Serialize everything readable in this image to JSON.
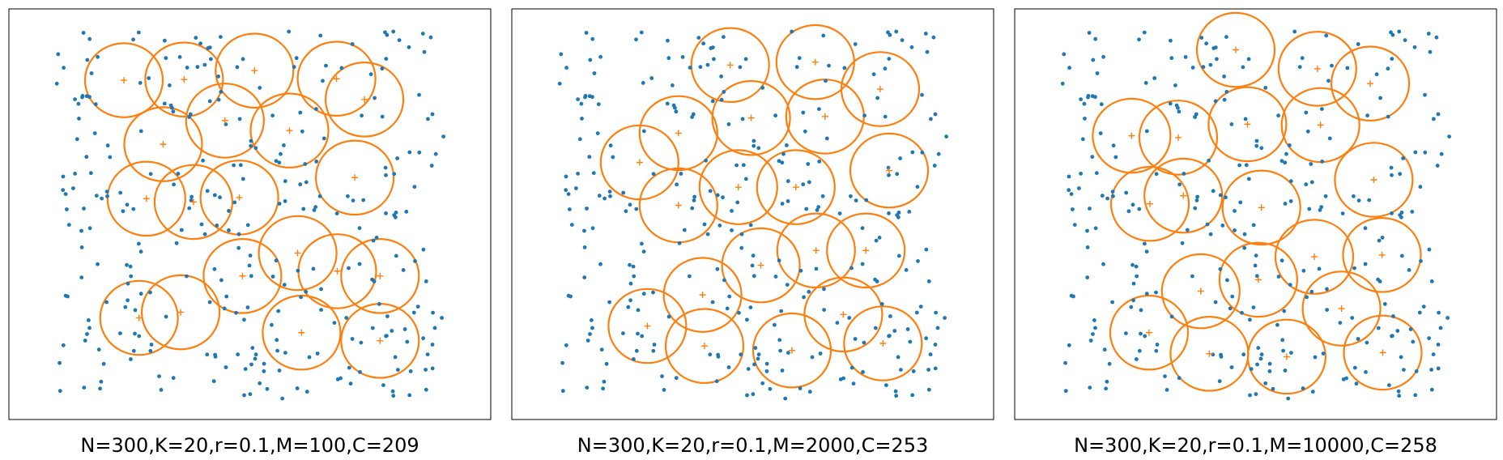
{
  "chart_data": [
    {
      "type": "scatter",
      "title": "N=300,K=20,r=0.1,M=100,C=209",
      "xlim": [
        0,
        1
      ],
      "ylim": [
        0,
        1
      ],
      "radius": 0.1,
      "n_points": 300,
      "centers": [
        {
          "x": 0.175,
          "y": 0.862
        },
        {
          "x": 0.33,
          "y": 0.864
        },
        {
          "x": 0.511,
          "y": 0.888
        },
        {
          "x": 0.722,
          "y": 0.866
        },
        {
          "x": 0.794,
          "y": 0.81
        },
        {
          "x": 0.435,
          "y": 0.753
        },
        {
          "x": 0.276,
          "y": 0.689
        },
        {
          "x": 0.601,
          "y": 0.726
        },
        {
          "x": 0.769,
          "y": 0.599
        },
        {
          "x": 0.233,
          "y": 0.542
        },
        {
          "x": 0.354,
          "y": 0.533
        },
        {
          "x": 0.472,
          "y": 0.545
        },
        {
          "x": 0.622,
          "y": 0.395
        },
        {
          "x": 0.724,
          "y": 0.346
        },
        {
          "x": 0.834,
          "y": 0.333
        },
        {
          "x": 0.48,
          "y": 0.333
        },
        {
          "x": 0.214,
          "y": 0.22
        },
        {
          "x": 0.321,
          "y": 0.235
        },
        {
          "x": 0.632,
          "y": 0.18
        },
        {
          "x": 0.834,
          "y": 0.158
        }
      ],
      "point_color": "#1f77b4",
      "center_color": "#ff7f0e",
      "circle_color": "#ff7f0e"
    },
    {
      "type": "scatter",
      "title": "N=300,K=20,r=0.1,M=2000,C=253",
      "xlim": [
        0,
        1
      ],
      "ylim": [
        0,
        1
      ],
      "radius": 0.1,
      "n_points": 300,
      "centers": [
        {
          "x": 0.441,
          "y": 0.903
        },
        {
          "x": 0.66,
          "y": 0.911
        },
        {
          "x": 0.827,
          "y": 0.838
        },
        {
          "x": 0.495,
          "y": 0.76
        },
        {
          "x": 0.685,
          "y": 0.764
        },
        {
          "x": 0.308,
          "y": 0.719
        },
        {
          "x": 0.208,
          "y": 0.64
        },
        {
          "x": 0.85,
          "y": 0.618
        },
        {
          "x": 0.308,
          "y": 0.524
        },
        {
          "x": 0.462,
          "y": 0.573
        },
        {
          "x": 0.61,
          "y": 0.573
        },
        {
          "x": 0.662,
          "y": 0.402
        },
        {
          "x": 0.79,
          "y": 0.402
        },
        {
          "x": 0.52,
          "y": 0.362
        },
        {
          "x": 0.37,
          "y": 0.282
        },
        {
          "x": 0.228,
          "y": 0.198
        },
        {
          "x": 0.375,
          "y": 0.144
        },
        {
          "x": 0.6,
          "y": 0.132
        },
        {
          "x": 0.732,
          "y": 0.229
        },
        {
          "x": 0.834,
          "y": 0.151
        }
      ],
      "point_color": "#1f77b4",
      "center_color": "#ff7f0e",
      "circle_color": "#ff7f0e"
    },
    {
      "type": "scatter",
      "title": "N=300,K=20,r=0.1,M=10000,C=258",
      "xlim": [
        0,
        1
      ],
      "ylim": [
        0,
        1
      ],
      "radius": 0.1,
      "n_points": 300,
      "centers": [
        {
          "x": 0.448,
          "y": 0.944
        },
        {
          "x": 0.658,
          "y": 0.893
        },
        {
          "x": 0.794,
          "y": 0.853
        },
        {
          "x": 0.478,
          "y": 0.743
        },
        {
          "x": 0.666,
          "y": 0.741
        },
        {
          "x": 0.18,
          "y": 0.712
        },
        {
          "x": 0.3,
          "y": 0.707
        },
        {
          "x": 0.803,
          "y": 0.593
        },
        {
          "x": 0.227,
          "y": 0.528
        },
        {
          "x": 0.313,
          "y": 0.55
        },
        {
          "x": 0.514,
          "y": 0.518
        },
        {
          "x": 0.65,
          "y": 0.385
        },
        {
          "x": 0.824,
          "y": 0.39
        },
        {
          "x": 0.506,
          "y": 0.323
        },
        {
          "x": 0.358,
          "y": 0.292
        },
        {
          "x": 0.225,
          "y": 0.18
        },
        {
          "x": 0.38,
          "y": 0.123
        },
        {
          "x": 0.579,
          "y": 0.115
        },
        {
          "x": 0.72,
          "y": 0.245
        },
        {
          "x": 0.826,
          "y": 0.126
        }
      ],
      "point_color": "#1f77b4",
      "center_color": "#ff7f0e",
      "circle_color": "#ff7f0e"
    }
  ]
}
